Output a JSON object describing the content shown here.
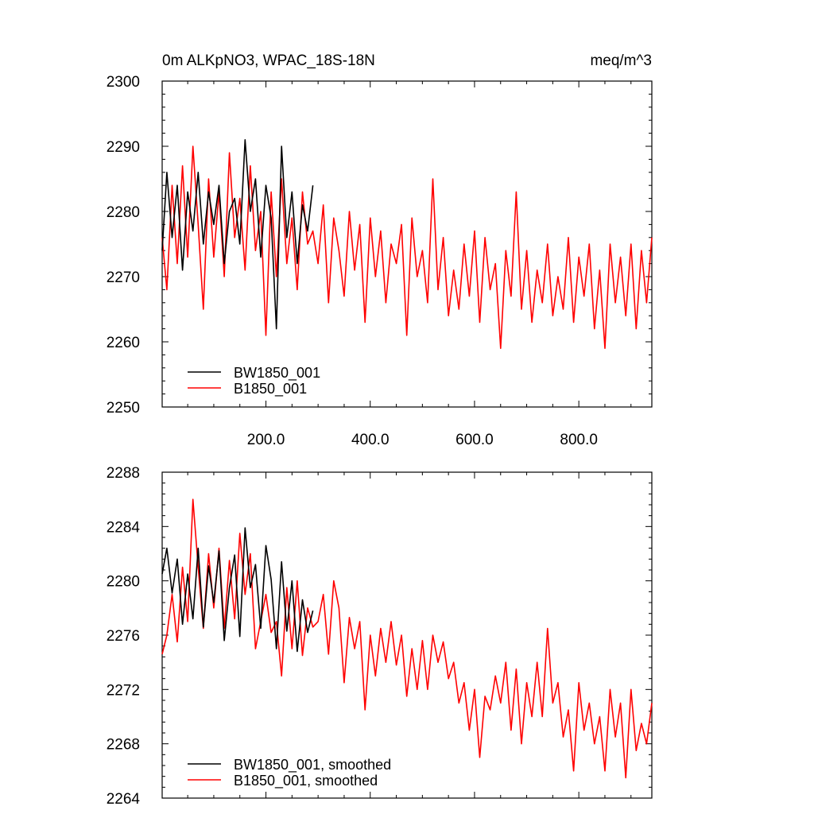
{
  "chart_data": [
    {
      "type": "line",
      "title": "0m ALKpNO3, WPAC_18S-18N",
      "units": "meq/m^3",
      "xlim": [
        1,
        940
      ],
      "ylim": [
        2250,
        2300
      ],
      "xticks": [
        200,
        400,
        600,
        800
      ],
      "xtick_labels": [
        "200.0",
        "400.0",
        "600.0",
        "800.0"
      ],
      "yticks": [
        2250,
        2260,
        2270,
        2280,
        2290,
        2300
      ],
      "ytick_labels": [
        "2250",
        "2260",
        "2270",
        "2280",
        "2290",
        "2300"
      ],
      "legend_position": "bottom-left",
      "series": [
        {
          "name": "BW1850_001",
          "color": "#000000",
          "x": [
            1,
            10,
            20,
            30,
            40,
            50,
            60,
            70,
            80,
            90,
            100,
            110,
            120,
            130,
            140,
            150,
            160,
            170,
            180,
            190,
            200,
            210,
            220,
            230,
            240,
            250,
            260,
            270,
            280,
            290
          ],
          "values": [
            2274,
            2286,
            2276,
            2284,
            2271,
            2283,
            2277,
            2286,
            2275,
            2283,
            2278,
            2284,
            2272,
            2280,
            2282,
            2275,
            2291,
            2280,
            2285,
            2273,
            2284,
            2279,
            2262,
            2290,
            2276,
            2283,
            2272,
            2281,
            2277,
            2284
          ]
        },
        {
          "name": "B1850_001",
          "color": "#ff0000",
          "x": [
            1,
            10,
            20,
            30,
            40,
            50,
            60,
            70,
            80,
            90,
            100,
            110,
            120,
            130,
            140,
            150,
            160,
            170,
            180,
            190,
            200,
            210,
            220,
            230,
            240,
            250,
            260,
            270,
            280,
            290,
            300,
            310,
            320,
            330,
            340,
            350,
            360,
            370,
            380,
            390,
            400,
            410,
            420,
            430,
            440,
            450,
            460,
            470,
            480,
            490,
            500,
            510,
            520,
            530,
            540,
            550,
            560,
            570,
            580,
            590,
            600,
            610,
            620,
            630,
            640,
            650,
            660,
            670,
            680,
            690,
            700,
            710,
            720,
            730,
            740,
            750,
            760,
            770,
            780,
            790,
            800,
            810,
            820,
            830,
            840,
            850,
            860,
            870,
            880,
            890,
            900,
            910,
            920,
            930,
            940
          ],
          "values": [
            2276,
            2268,
            2284,
            2272,
            2287,
            2273,
            2290,
            2278,
            2265,
            2285,
            2273,
            2283,
            2270,
            2289,
            2276,
            2282,
            2271,
            2287,
            2274,
            2280,
            2261,
            2283,
            2270,
            2285,
            2272,
            2279,
            2268,
            2283,
            2275,
            2277,
            2272,
            2281,
            2266,
            2279,
            2274,
            2267,
            2280,
            2271,
            2278,
            2263,
            2279,
            2270,
            2277,
            2266,
            2275,
            2272,
            2278,
            2261,
            2279,
            2270,
            2274,
            2266,
            2285,
            2268,
            2276,
            2264,
            2271,
            2265,
            2275,
            2267,
            2277,
            2263,
            2276,
            2268,
            2272,
            2259,
            2274,
            2267,
            2283,
            2265,
            2274,
            2263,
            2271,
            2266,
            2275,
            2264,
            2270,
            2265,
            2276,
            2263,
            2273,
            2267,
            2275,
            2262,
            2271,
            2259,
            2275,
            2266,
            2273,
            2264,
            2275,
            2262,
            2274,
            2266,
            2276
          ]
        }
      ]
    },
    {
      "type": "line",
      "xlim": [
        1,
        940
      ],
      "ylim": [
        2264,
        2288
      ],
      "yticks": [
        2264,
        2268,
        2272,
        2276,
        2280,
        2284,
        2288
      ],
      "ytick_labels": [
        "2264",
        "2268",
        "2272",
        "2276",
        "2280",
        "2284",
        "2288"
      ],
      "legend_position": "bottom-left",
      "series": [
        {
          "name": "BW1850_001, smoothed",
          "color": "#000000",
          "x": [
            1,
            10,
            20,
            30,
            40,
            50,
            60,
            70,
            80,
            90,
            100,
            110,
            120,
            130,
            140,
            150,
            160,
            170,
            180,
            190,
            200,
            210,
            220,
            230,
            240,
            250,
            260,
            270,
            280,
            290
          ],
          "values": [
            2280.5,
            2282.4,
            2279.1,
            2281.6,
            2276.8,
            2280.5,
            2277.2,
            2282.4,
            2276.6,
            2281.1,
            2278.4,
            2282.2,
            2275.6,
            2279.5,
            2281.9,
            2275.9,
            2283.9,
            2279.5,
            2281.2,
            2276.5,
            2282.6,
            2280.1,
            2275.0,
            2281.4,
            2276.3,
            2280.0,
            2274.8,
            2278.6,
            2276.2,
            2277.8
          ]
        },
        {
          "name": "B1850_001, smoothed",
          "color": "#ff0000",
          "x": [
            1,
            10,
            20,
            30,
            40,
            50,
            60,
            70,
            80,
            90,
            100,
            110,
            120,
            130,
            140,
            150,
            160,
            170,
            180,
            190,
            200,
            210,
            220,
            230,
            240,
            250,
            260,
            270,
            280,
            290,
            300,
            310,
            320,
            330,
            340,
            350,
            360,
            370,
            380,
            390,
            400,
            410,
            420,
            430,
            440,
            450,
            460,
            470,
            480,
            490,
            500,
            510,
            520,
            530,
            540,
            550,
            560,
            570,
            580,
            590,
            600,
            610,
            620,
            630,
            640,
            650,
            660,
            670,
            680,
            690,
            700,
            710,
            720,
            730,
            740,
            750,
            760,
            770,
            780,
            790,
            800,
            810,
            820,
            830,
            840,
            850,
            860,
            870,
            880,
            890,
            900,
            910,
            920,
            930,
            940
          ],
          "values": [
            2274.6,
            2276.0,
            2279.0,
            2275.5,
            2281.0,
            2277.0,
            2286.0,
            2281.0,
            2276.5,
            2282.0,
            2278.0,
            2282.4,
            2276.5,
            2281.5,
            2277.2,
            2283.5,
            2279.0,
            2282.0,
            2275.0,
            2277.0,
            2279.0,
            2276.2,
            2277.0,
            2273.0,
            2279.5,
            2275.0,
            2280.0,
            2274.5,
            2278.0,
            2276.6,
            2277.0,
            2279.0,
            2274.6,
            2280.0,
            2278.0,
            2272.5,
            2277.3,
            2275.0,
            2277.0,
            2270.5,
            2276.0,
            2273.0,
            2276.5,
            2274.0,
            2277.0,
            2273.8,
            2276.0,
            2271.5,
            2275.0,
            2272.0,
            2275.6,
            2272.0,
            2276.0,
            2274.0,
            2275.5,
            2272.8,
            2274.0,
            2271.0,
            2272.5,
            2269.0,
            2272.0,
            2267.0,
            2271.5,
            2270.5,
            2273.0,
            2271.0,
            2274.0,
            2269.0,
            2273.5,
            2268.0,
            2272.5,
            2270.0,
            2274.0,
            2270.0,
            2276.5,
            2271.0,
            2272.5,
            2268.5,
            2270.5,
            2266.0,
            2272.5,
            2269.0,
            2271.0,
            2268.0,
            2270.0,
            2266.0,
            2272.0,
            2268.5,
            2271.0,
            2265.5,
            2272.0,
            2267.5,
            2269.5,
            2268.0,
            2271.0
          ]
        }
      ]
    }
  ]
}
